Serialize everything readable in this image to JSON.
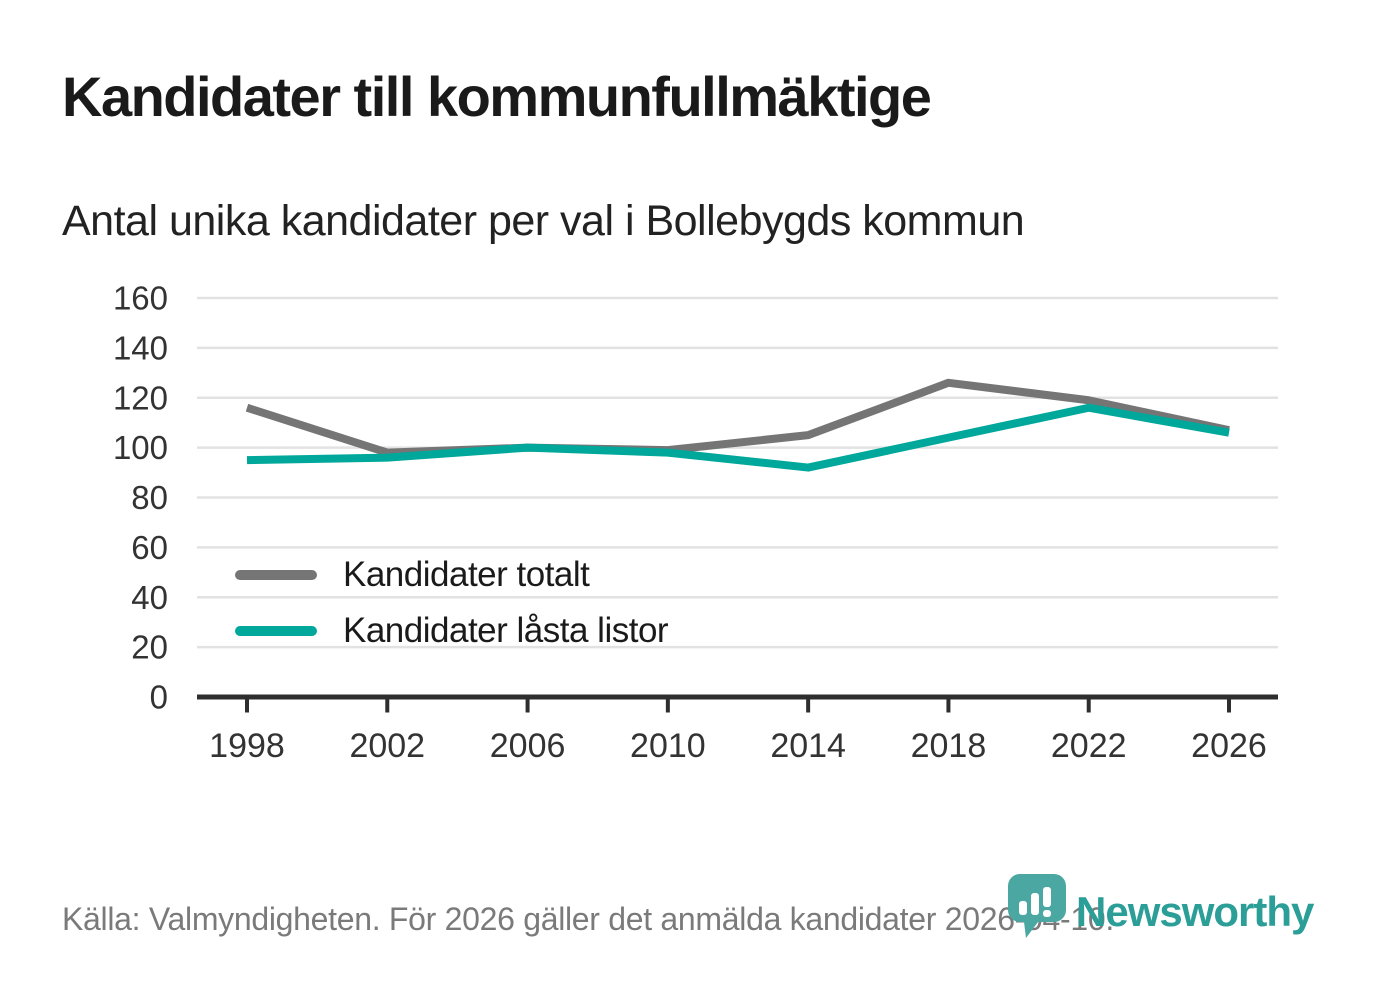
{
  "header": {
    "title": "Kandidater till kommunfullmäktige",
    "subtitle": "Antal unika kandidater per val i Bollebygds kommun"
  },
  "chart_data": {
    "type": "line",
    "title": "Kandidater till kommunfullmäktige",
    "subtitle": "Antal unika kandidater per val i Bollebygds kommun",
    "x": [
      1998,
      2002,
      2006,
      2010,
      2014,
      2018,
      2022,
      2026
    ],
    "series": [
      {
        "name": "Kandidater totalt",
        "color": "#757575",
        "values": [
          116,
          98,
          100,
          99,
          105,
          126,
          119,
          107
        ]
      },
      {
        "name": "Kandidater låsta listor",
        "color": "#00a79b",
        "values": [
          95,
          96,
          100,
          98,
          92,
          104,
          116,
          106
        ]
      }
    ],
    "xlabel": "",
    "ylabel": "",
    "ylim": [
      0,
      160
    ],
    "ytick_step": 20,
    "grid": true,
    "legend_position": "inside-lower-left"
  },
  "footer": {
    "source_text": "Källa: Valmyndigheten. För 2026 gäller det anmälda kandidater 2026-04-10."
  },
  "logo": {
    "brand": "Newsworthy",
    "pin_color": "#4ba7a1",
    "text_color": "#2b9e97"
  },
  "colors": {
    "grid": "#e2e2e2",
    "axis": "#2e2e2e",
    "tick_label": "#333333",
    "title": "#1a1a1a",
    "subtitle": "#222222",
    "footer_text": "#7a7a7a",
    "background": "#ffffff"
  }
}
